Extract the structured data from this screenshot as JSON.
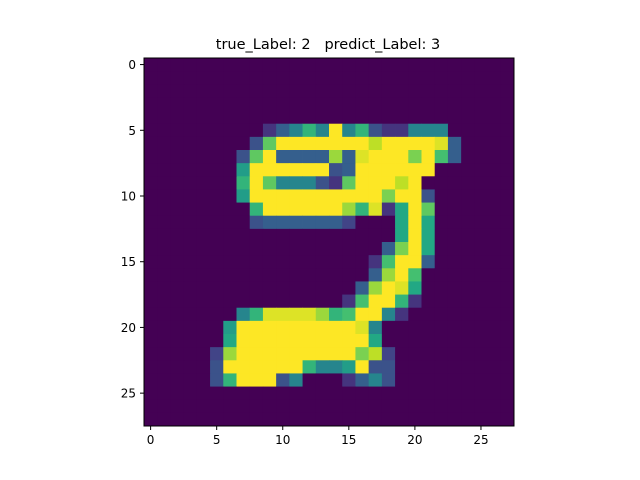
{
  "chart_data": {
    "type": "heatmap",
    "title": "true_Label: 2   predict_Label: 3",
    "xlabel": "",
    "ylabel": "",
    "xticks": [
      0,
      5,
      10,
      15,
      20,
      25
    ],
    "yticks": [
      0,
      5,
      10,
      15,
      20,
      25
    ],
    "xlim": [
      -0.5,
      27.5
    ],
    "ylim": [
      27.5,
      -0.5
    ],
    "colormap": "viridis",
    "vmin": 0,
    "vmax": 1,
    "rows": 28,
    "cols": 28,
    "pixels": [
      [
        0,
        0,
        0,
        0,
        0,
        0,
        0,
        0,
        0,
        0,
        0,
        0,
        0,
        0,
        0,
        0,
        0,
        0,
        0,
        0,
        0,
        0,
        0,
        0,
        0,
        0,
        0,
        0
      ],
      [
        0,
        0,
        0,
        0,
        0,
        0,
        0,
        0,
        0,
        0,
        0,
        0,
        0,
        0,
        0,
        0,
        0,
        0,
        0,
        0,
        0,
        0,
        0,
        0,
        0,
        0,
        0,
        0
      ],
      [
        0,
        0,
        0,
        0,
        0,
        0,
        0,
        0,
        0,
        0,
        0,
        0,
        0,
        0,
        0,
        0,
        0,
        0,
        0,
        0,
        0,
        0,
        0,
        0,
        0,
        0,
        0,
        0
      ],
      [
        0,
        0,
        0,
        0,
        0,
        0,
        0,
        0,
        0,
        0,
        0,
        0,
        0,
        0,
        0,
        0,
        0,
        0,
        0,
        0,
        0,
        0,
        0,
        0,
        0,
        0,
        0,
        0
      ],
      [
        0,
        0,
        0,
        0,
        0,
        0,
        0,
        0,
        0,
        0,
        0,
        0,
        0,
        0,
        0,
        0,
        0,
        0,
        0,
        0,
        0,
        0,
        0,
        0,
        0,
        0,
        0,
        0
      ],
      [
        0,
        0,
        0,
        0,
        0,
        0,
        0,
        0,
        0,
        0.15,
        0.3,
        0.45,
        0.65,
        0.45,
        1,
        0.45,
        0.65,
        0.25,
        0.15,
        0.15,
        0.45,
        0.45,
        0.45,
        0,
        0,
        0,
        0,
        0
      ],
      [
        0,
        0,
        0,
        0,
        0,
        0,
        0,
        0,
        0.25,
        0.75,
        1,
        1,
        1,
        1,
        1,
        1,
        1,
        0.9,
        1,
        1,
        1,
        1,
        0.95,
        0.3,
        0,
        0,
        0,
        0
      ],
      [
        0,
        0,
        0,
        0,
        0,
        0,
        0,
        0.25,
        0.75,
        1,
        0.3,
        0.3,
        0.3,
        0.3,
        0.85,
        0.3,
        0.95,
        1,
        1,
        1,
        0.8,
        1,
        0.7,
        0.3,
        0,
        0,
        0,
        0
      ],
      [
        0,
        0,
        0,
        0,
        0,
        0,
        0,
        0.55,
        1,
        1,
        1,
        1,
        1,
        1,
        0.25,
        0.3,
        1,
        1,
        1,
        1,
        1,
        1,
        0,
        0,
        0,
        0,
        0,
        0
      ],
      [
        0,
        0,
        0,
        0,
        0,
        0,
        0,
        0.65,
        1,
        0.75,
        0.45,
        0.45,
        0.45,
        0.25,
        0.15,
        0.75,
        1,
        1,
        1,
        0.9,
        1,
        0,
        0,
        0,
        0,
        0,
        0,
        0
      ],
      [
        0,
        0,
        0,
        0,
        0,
        0,
        0,
        0.55,
        1,
        1,
        1,
        1,
        1,
        1,
        1,
        1,
        1,
        1,
        0.8,
        1,
        1,
        0.25,
        0,
        0,
        0,
        0,
        0,
        0
      ],
      [
        0,
        0,
        0,
        0,
        0,
        0,
        0,
        0,
        0.65,
        1,
        1,
        1,
        1,
        1,
        1,
        0.85,
        0.65,
        0.95,
        0.15,
        0.6,
        1,
        0.75,
        0,
        0,
        0,
        0,
        0,
        0
      ],
      [
        0,
        0,
        0,
        0,
        0,
        0,
        0,
        0,
        0.25,
        0.3,
        0.3,
        0.3,
        0.3,
        0.3,
        0.3,
        0.2,
        0,
        0,
        0,
        0.6,
        1,
        0.6,
        0,
        0,
        0,
        0,
        0,
        0
      ],
      [
        0,
        0,
        0,
        0,
        0,
        0,
        0,
        0,
        0,
        0,
        0,
        0,
        0,
        0,
        0,
        0,
        0,
        0,
        0,
        0.6,
        1,
        0.6,
        0,
        0,
        0,
        0,
        0,
        0
      ],
      [
        0,
        0,
        0,
        0,
        0,
        0,
        0,
        0,
        0,
        0,
        0,
        0,
        0,
        0,
        0,
        0,
        0,
        0,
        0.3,
        0.8,
        1,
        0.6,
        0,
        0,
        0,
        0,
        0,
        0
      ],
      [
        0,
        0,
        0,
        0,
        0,
        0,
        0,
        0,
        0,
        0,
        0,
        0,
        0,
        0,
        0,
        0,
        0,
        0.15,
        0.7,
        1,
        1,
        0.3,
        0,
        0,
        0,
        0,
        0,
        0
      ],
      [
        0,
        0,
        0,
        0,
        0,
        0,
        0,
        0,
        0,
        0,
        0,
        0,
        0,
        0,
        0,
        0,
        0,
        0.3,
        0.85,
        1,
        0.7,
        0,
        0,
        0,
        0,
        0,
        0,
        0
      ],
      [
        0,
        0,
        0,
        0,
        0,
        0,
        0,
        0,
        0,
        0,
        0,
        0,
        0,
        0,
        0,
        0,
        0.3,
        0.85,
        1,
        0.95,
        0.6,
        0,
        0,
        0,
        0,
        0,
        0,
        0
      ],
      [
        0,
        0,
        0,
        0,
        0,
        0,
        0,
        0,
        0,
        0,
        0,
        0,
        0,
        0,
        0,
        0.15,
        0.7,
        1,
        1,
        0.65,
        0.15,
        0,
        0,
        0,
        0,
        0,
        0,
        0
      ],
      [
        0,
        0,
        0,
        0,
        0,
        0,
        0,
        0.45,
        0.65,
        0.95,
        0.95,
        0.95,
        0.95,
        0.85,
        0.65,
        0.7,
        1,
        1,
        0.45,
        0.15,
        0,
        0,
        0,
        0,
        0,
        0,
        0,
        0
      ],
      [
        0,
        0,
        0,
        0,
        0,
        0,
        0.55,
        1,
        1,
        1,
        1,
        1,
        1,
        1,
        1,
        1,
        0.95,
        0.45,
        0,
        0,
        0,
        0,
        0,
        0,
        0,
        0,
        0,
        0
      ],
      [
        0,
        0,
        0,
        0,
        0,
        0,
        0.6,
        1,
        1,
        1,
        1,
        1,
        1,
        1,
        1,
        1,
        1,
        0.6,
        0,
        0,
        0,
        0,
        0,
        0,
        0,
        0,
        0,
        0
      ],
      [
        0,
        0,
        0,
        0,
        0,
        0.2,
        0.85,
        1,
        1,
        1,
        1,
        1,
        1,
        1,
        1,
        1,
        0.8,
        0.9,
        0.2,
        0,
        0,
        0,
        0,
        0,
        0,
        0,
        0,
        0
      ],
      [
        0,
        0,
        0,
        0,
        0,
        0.25,
        1,
        1,
        1,
        1,
        1,
        1,
        0.65,
        0.45,
        0.45,
        0.55,
        1,
        0.25,
        0.25,
        0,
        0,
        0,
        0,
        0,
        0,
        0,
        0,
        0
      ],
      [
        0,
        0,
        0,
        0,
        0,
        0.25,
        0.65,
        1,
        1,
        1,
        0.25,
        0.45,
        0,
        0,
        0,
        0.15,
        0.3,
        0.45,
        0.25,
        0,
        0,
        0,
        0,
        0,
        0,
        0,
        0,
        0
      ],
      [
        0,
        0,
        0,
        0,
        0,
        0,
        0,
        0,
        0,
        0,
        0,
        0,
        0,
        0,
        0,
        0,
        0,
        0,
        0,
        0,
        0,
        0,
        0,
        0,
        0,
        0,
        0,
        0
      ],
      [
        0,
        0,
        0,
        0,
        0,
        0,
        0,
        0,
        0,
        0,
        0,
        0,
        0,
        0,
        0,
        0,
        0,
        0,
        0,
        0,
        0,
        0,
        0,
        0,
        0,
        0,
        0,
        0
      ],
      [
        0,
        0,
        0,
        0,
        0,
        0,
        0,
        0,
        0,
        0,
        0,
        0,
        0,
        0,
        0,
        0,
        0,
        0,
        0,
        0,
        0,
        0,
        0,
        0,
        0,
        0,
        0,
        0
      ]
    ]
  }
}
